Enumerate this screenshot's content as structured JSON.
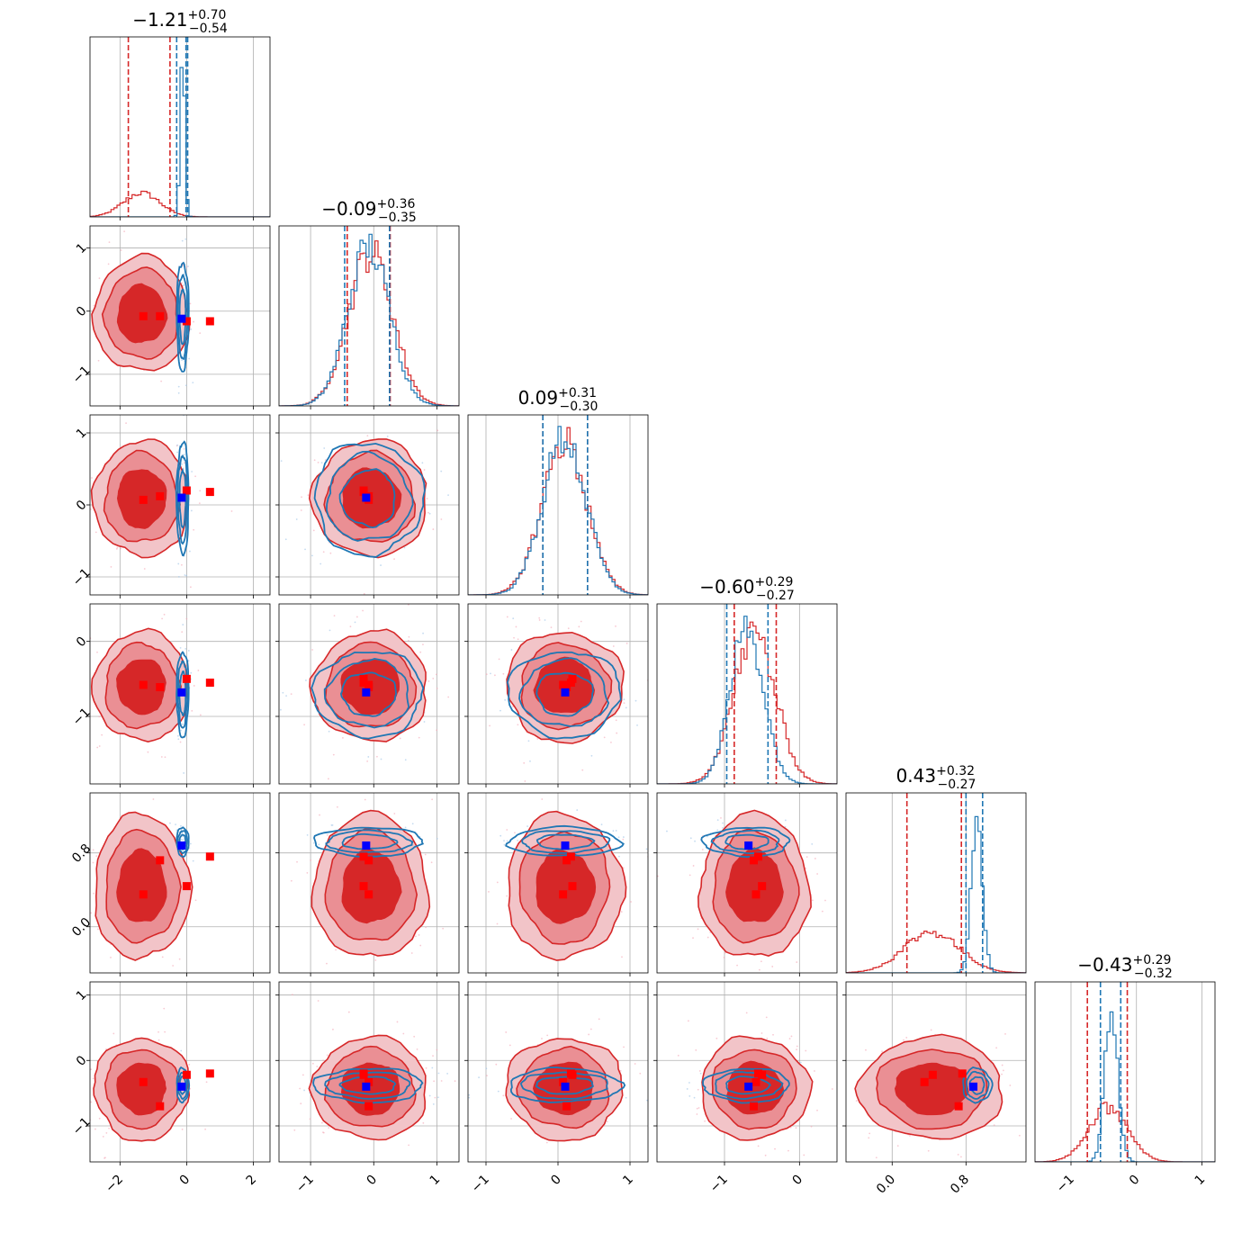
{
  "chart_data": {
    "type": "corner",
    "series": [
      {
        "name": "",
        "color": "#d62728",
        "marker_color": "#ff0000"
      },
      {
        "name": "",
        "color": "#1f77b4",
        "marker_color": "#0000ff"
      }
    ],
    "parameters": [
      {
        "title_value": "−1.21",
        "title_plus": "+0.70",
        "title_minus": "−0.54",
        "range": [
          -2.9,
          2.5
        ],
        "ticks": [
          -2,
          0,
          2
        ],
        "tick_labels": [
          "−2",
          "0",
          "2"
        ],
        "red_hist": {
          "center": -1.35,
          "sigma": 0.55,
          "peak": 0.14
        },
        "blue_hist": {
          "center": -0.12,
          "sigma": 0.07,
          "peak": 0.92
        },
        "red_quantiles": [
          -1.75,
          -0.5
        ],
        "blue_quantiles": [
          -0.3,
          -0.02,
          0.03
        ]
      },
      {
        "title_value": "−0.09",
        "title_plus": "+0.36",
        "title_minus": "−0.35",
        "range": [
          -1.5,
          1.35
        ],
        "ticks": [
          -1,
          0,
          1
        ],
        "tick_labels": [
          "−1",
          "0",
          "1"
        ],
        "red_hist": {
          "center": -0.05,
          "sigma": 0.35,
          "peak": 0.9
        },
        "blue_hist": {
          "center": -0.08,
          "sigma": 0.33,
          "peak": 0.93
        },
        "red_quantiles": [
          -0.42,
          0.26
        ],
        "blue_quantiles": [
          -0.46,
          0.25
        ]
      },
      {
        "title_value": "0.09",
        "title_plus": "+0.31",
        "title_minus": "−0.30",
        "range": [
          -1.25,
          1.25
        ],
        "ticks": [
          -1,
          0,
          1
        ],
        "tick_labels": [
          "−1",
          "0",
          "1"
        ],
        "red_hist": {
          "center": 0.09,
          "sigma": 0.31,
          "peak": 0.9
        },
        "blue_hist": {
          "center": 0.09,
          "sigma": 0.3,
          "peak": 0.92
        },
        "red_quantiles": [
          -0.21,
          0.41
        ],
        "blue_quantiles": [
          -0.21,
          0.41
        ]
      },
      {
        "title_value": "−0.60",
        "title_plus": "+0.29",
        "title_minus": "−0.27",
        "range": [
          -1.9,
          0.5
        ],
        "ticks": [
          -1,
          0
        ],
        "tick_labels": [
          "−1",
          "0"
        ],
        "red_hist": {
          "center": -0.6,
          "sigma": 0.28,
          "peak": 0.88
        },
        "blue_hist": {
          "center": -0.7,
          "sigma": 0.22,
          "peak": 0.93
        },
        "red_quantiles": [
          -0.87,
          -0.31
        ],
        "blue_quantiles": [
          -0.97,
          -0.42
        ]
      },
      {
        "title_value": "0.43",
        "title_plus": "+0.32",
        "title_minus": "−0.27",
        "range": [
          -0.5,
          1.45
        ],
        "ticks": [
          0.0,
          0.8
        ],
        "tick_labels": [
          "0.0",
          "0.8"
        ],
        "red_hist": {
          "center": 0.43,
          "sigma": 0.3,
          "peak": 0.24
        },
        "blue_hist": {
          "center": 0.92,
          "sigma": 0.06,
          "peak": 0.9
        },
        "red_quantiles": [
          0.16,
          0.75
        ],
        "blue_quantiles": [
          0.8,
          0.98
        ]
      },
      {
        "title_value": "−0.43",
        "title_plus": "+0.29",
        "title_minus": "−0.32",
        "range": [
          -1.55,
          1.2
        ],
        "ticks": [
          -1,
          0,
          1
        ],
        "tick_labels": [
          "−1",
          "0",
          "1"
        ],
        "red_hist": {
          "center": -0.43,
          "sigma": 0.3,
          "peak": 0.32
        },
        "blue_hist": {
          "center": -0.38,
          "sigma": 0.1,
          "peak": 0.9
        },
        "red_quantiles": [
          -0.75,
          -0.14
        ],
        "blue_quantiles": [
          -0.55,
          -0.24
        ]
      }
    ],
    "truth_markers": [
      {
        "series": 0,
        "values": [
          -1.3,
          -0.08,
          0.07,
          -0.58,
          0.35,
          -0.33
        ]
      },
      {
        "series": 0,
        "values": [
          -0.8,
          -0.08,
          0.12,
          -0.61,
          0.72,
          -0.7
        ]
      },
      {
        "series": 0,
        "values": [
          0.0,
          -0.16,
          0.2,
          -0.5,
          0.44,
          -0.22
        ]
      },
      {
        "series": 0,
        "values": [
          0.7,
          -0.16,
          0.18,
          -0.55,
          0.76,
          -0.2
        ]
      },
      {
        "series": 1,
        "values": [
          -0.15,
          -0.12,
          0.1,
          -0.68,
          0.88,
          -0.4
        ]
      }
    ]
  }
}
